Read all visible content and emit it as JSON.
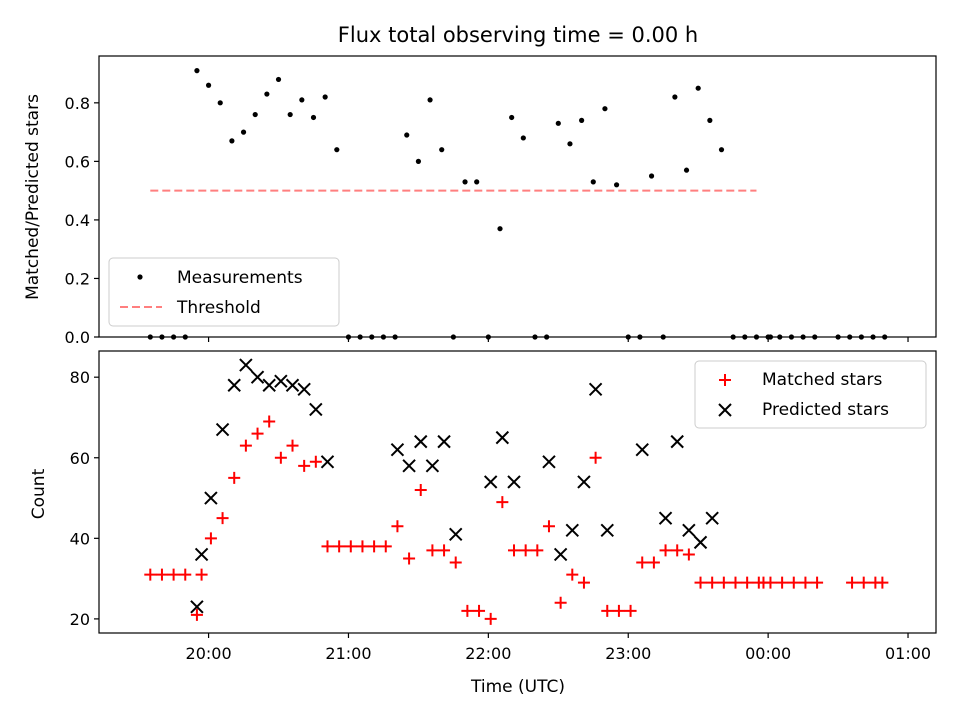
{
  "chart_data": [
    {
      "type": "scatter",
      "title": "Flux total observing time = 0.00 h",
      "xlabel": "",
      "ylabel": "Matched/Predicted stars",
      "ylim": [
        0,
        0.96
      ],
      "yticks": [
        "0.0",
        "0.2",
        "0.4",
        "0.6",
        "0.8"
      ],
      "ytick_values": [
        0,
        0.2,
        0.4,
        0.6,
        0.8
      ],
      "xlim_minutes": [
        1153,
        1512
      ],
      "xticks": [
        "20:00",
        "21:00",
        "22:00",
        "23:00",
        "00:00",
        "01:00"
      ],
      "xtick_minutes": [
        1200,
        1260,
        1320,
        1380,
        1440,
        1500
      ],
      "legend_position": "lower-left",
      "grid": false,
      "series": [
        {
          "name": "Measurements",
          "marker": "dot",
          "color": "#000000",
          "x": [
            "19:35",
            "19:40",
            "19:45",
            "19:50",
            "19:55",
            "20:00",
            "20:05",
            "20:10",
            "20:15",
            "20:20",
            "20:25",
            "20:30",
            "20:35",
            "20:40",
            "20:45",
            "20:50",
            "20:55",
            "21:00",
            "21:05",
            "21:10",
            "21:15",
            "21:20",
            "21:25",
            "21:30",
            "21:35",
            "21:40",
            "21:45",
            "21:50",
            "21:55",
            "22:00",
            "22:05",
            "22:10",
            "22:15",
            "22:20",
            "22:25",
            "22:30",
            "22:35",
            "22:40",
            "22:45",
            "22:50",
            "22:55",
            "23:00",
            "23:05",
            "23:10",
            "23:15",
            "23:20",
            "23:25",
            "23:30",
            "23:35",
            "23:40",
            "23:45",
            "23:50",
            "23:55",
            "00:00",
            "00:01",
            "00:05",
            "00:10",
            "00:15",
            "00:20",
            "00:30",
            "00:35",
            "00:40",
            "00:45",
            "00:50"
          ],
          "y": [
            0,
            0,
            0,
            0,
            0.91,
            0.86,
            0.8,
            0.67,
            0.7,
            0.76,
            0.83,
            0.88,
            0.76,
            0.81,
            0.75,
            0.82,
            0.64,
            0,
            0,
            0,
            0,
            0,
            0.69,
            0.6,
            0.81,
            0.64,
            0,
            0.53,
            0.53,
            0,
            0.37,
            0.75,
            0.68,
            0,
            0,
            0.73,
            0.66,
            0.74,
            0.53,
            0.78,
            0.52,
            0,
            0,
            0.55,
            0,
            0.82,
            0.57,
            0.85,
            0.74,
            0.64,
            0,
            0,
            0,
            0,
            0,
            0,
            0,
            0,
            0,
            0,
            0,
            0,
            0,
            0
          ]
        },
        {
          "name": "Threshold",
          "style": "dashed",
          "color": "#ff7f7f",
          "x": [
            "19:35",
            "23:55"
          ],
          "y": [
            0.5,
            0.5
          ]
        }
      ]
    },
    {
      "type": "scatter",
      "title": "",
      "xlabel": "Time (UTC)",
      "ylabel": "Count",
      "ylim": [
        16.5,
        86.5
      ],
      "yticks": [
        "20",
        "40",
        "60",
        "80"
      ],
      "ytick_values": [
        20,
        40,
        60,
        80
      ],
      "xlim_minutes": [
        1153,
        1512
      ],
      "xticks": [
        "20:00",
        "21:00",
        "22:00",
        "23:00",
        "00:00",
        "01:00"
      ],
      "xtick_minutes": [
        1200,
        1260,
        1320,
        1380,
        1440,
        1500
      ],
      "legend_position": "top-right",
      "grid": false,
      "series": [
        {
          "name": "Matched stars",
          "marker": "plus",
          "color": "#ff0000",
          "x": [
            "19:35",
            "19:40",
            "19:45",
            "19:50",
            "19:55",
            "19:57",
            "20:01",
            "20:06",
            "20:11",
            "20:16",
            "20:21",
            "20:26",
            "20:31",
            "20:36",
            "20:41",
            "20:46",
            "20:51",
            "20:56",
            "21:01",
            "21:06",
            "21:11",
            "21:16",
            "21:21",
            "21:26",
            "21:31",
            "21:36",
            "21:41",
            "21:46",
            "21:51",
            "21:56",
            "22:01",
            "22:06",
            "22:11",
            "22:16",
            "22:21",
            "22:26",
            "22:31",
            "22:36",
            "22:41",
            "22:46",
            "22:51",
            "22:56",
            "23:01",
            "23:06",
            "23:11",
            "23:16",
            "23:21",
            "23:26",
            "23:31",
            "23:36",
            "23:41",
            "23:46",
            "23:51",
            "23:56",
            "23:58",
            "00:01",
            "00:06",
            "00:11",
            "00:16",
            "00:21",
            "00:36",
            "00:41",
            "00:46",
            "00:49"
          ],
          "y": [
            31,
            31,
            31,
            31,
            21,
            31,
            40,
            45,
            55,
            63,
            66,
            69,
            60,
            63,
            58,
            59,
            38,
            38,
            38,
            38,
            38,
            38,
            43,
            35,
            52,
            37,
            37,
            34,
            22,
            22,
            20,
            49,
            37,
            37,
            37,
            43,
            24,
            31,
            29,
            60,
            22,
            22,
            22,
            34,
            34,
            37,
            37,
            36,
            29,
            29,
            29,
            29,
            29,
            29,
            29,
            29,
            29,
            29,
            29,
            29,
            29,
            29,
            29,
            29
          ]
        },
        {
          "name": "Predicted stars",
          "marker": "x",
          "color": "#000000",
          "x": [
            "19:55",
            "19:57",
            "20:01",
            "20:06",
            "20:11",
            "20:16",
            "20:21",
            "20:26",
            "20:31",
            "20:36",
            "20:41",
            "20:46",
            "20:51",
            "21:21",
            "21:26",
            "21:31",
            "21:36",
            "21:41",
            "21:46",
            "22:01",
            "22:06",
            "22:11",
            "22:26",
            "22:31",
            "22:36",
            "22:41",
            "22:46",
            "22:51",
            "23:06",
            "23:16",
            "23:21",
            "23:26",
            "23:31",
            "23:36"
          ],
          "y": [
            23,
            36,
            50,
            67,
            78,
            83,
            80,
            78,
            79,
            78,
            77,
            72,
            59,
            62,
            58,
            64,
            58,
            64,
            41,
            54,
            65,
            54,
            59,
            36,
            42,
            54,
            77,
            42,
            62,
            45,
            64,
            42,
            39,
            45
          ]
        }
      ]
    }
  ]
}
